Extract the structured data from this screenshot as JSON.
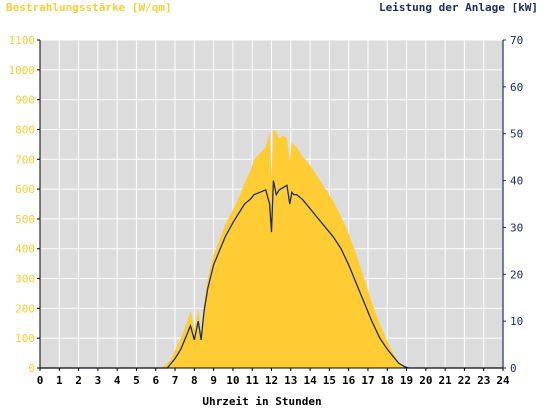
{
  "colors": {
    "irradiance": "#ffcc33",
    "power": "#1a2f6b",
    "plot_bg": "#dcdcdc",
    "grid": "#ffffff",
    "axis_text_left": "#ffcc33",
    "axis_text_right": "#1a2f6b",
    "axis_text_x": "#000000"
  },
  "chart_data": {
    "type": "area",
    "xlabel": "Uhrzeit in Stunden",
    "ylabel_left": "Bestrahlungsstärke [W/qm]",
    "ylabel_right": "Leistung der Anlage [kW]",
    "xlim": [
      0,
      24
    ],
    "ylim_left": [
      0,
      1100
    ],
    "ylim_right": [
      0,
      70
    ],
    "grid": true,
    "x_ticks": [
      "0",
      "1",
      "2",
      "3",
      "4",
      "5",
      "6",
      "7",
      "8",
      "9",
      "10",
      "11",
      "12",
      "13",
      "14",
      "15",
      "16",
      "17",
      "18",
      "19",
      "20",
      "21",
      "22",
      "23",
      "24"
    ],
    "y_ticks_left": [
      "0",
      "100",
      "200",
      "300",
      "400",
      "500",
      "600",
      "700",
      "800",
      "900",
      "1000",
      "1100"
    ],
    "y_ticks_right": [
      "0",
      "10",
      "20",
      "30",
      "40",
      "50",
      "60",
      "70"
    ],
    "series": [
      {
        "axis": "left",
        "style": "area",
        "x": [
          0,
          6.3,
          6.5,
          6.8,
          7.0,
          7.3,
          7.6,
          7.8,
          8.0,
          8.1,
          8.2,
          8.35,
          8.5,
          8.7,
          9.0,
          9.3,
          9.6,
          10.0,
          10.3,
          10.6,
          10.9,
          11.1,
          11.4,
          11.7,
          11.9,
          12.0,
          12.1,
          12.25,
          12.4,
          12.6,
          12.8,
          12.95,
          13.05,
          13.15,
          13.3,
          13.6,
          14.0,
          14.4,
          14.8,
          15.2,
          15.6,
          16.0,
          16.4,
          16.8,
          17.2,
          17.6,
          18.0,
          18.3,
          18.6,
          18.9,
          19.1,
          19.3,
          24
        ],
        "y": [
          0,
          0,
          10,
          30,
          60,
          100,
          150,
          190,
          130,
          160,
          200,
          120,
          220,
          300,
          380,
          430,
          480,
          530,
          570,
          620,
          660,
          700,
          720,
          740,
          790,
          640,
          800,
          790,
          770,
          780,
          770,
          690,
          760,
          750,
          740,
          710,
          680,
          640,
          600,
          560,
          510,
          450,
          380,
          300,
          220,
          150,
          90,
          50,
          20,
          5,
          0,
          0,
          0
        ]
      },
      {
        "axis": "right",
        "style": "line",
        "x": [
          0,
          6.6,
          7.0,
          7.3,
          7.6,
          7.8,
          8.0,
          8.1,
          8.2,
          8.35,
          8.5,
          8.7,
          9.0,
          9.3,
          9.6,
          10.0,
          10.3,
          10.6,
          10.9,
          11.1,
          11.4,
          11.7,
          11.9,
          12.0,
          12.1,
          12.25,
          12.4,
          12.6,
          12.8,
          12.95,
          13.05,
          13.15,
          13.3,
          13.6,
          14.0,
          14.4,
          14.8,
          15.2,
          15.6,
          16.0,
          16.4,
          16.8,
          17.2,
          17.6,
          18.0,
          18.3,
          18.6,
          18.9,
          19.1,
          24
        ],
        "y": [
          0,
          0,
          2,
          4,
          7,
          9,
          6,
          8,
          10,
          6,
          12,
          17,
          22,
          25,
          28,
          31,
          33,
          35,
          36,
          37,
          37.5,
          38,
          35,
          29,
          40,
          37,
          38,
          38.5,
          39,
          35,
          37.5,
          37,
          37,
          36,
          34,
          32,
          30,
          28,
          25.5,
          22,
          18,
          14,
          10,
          6.5,
          4,
          2.5,
          1,
          0.3,
          0,
          0
        ]
      }
    ]
  }
}
